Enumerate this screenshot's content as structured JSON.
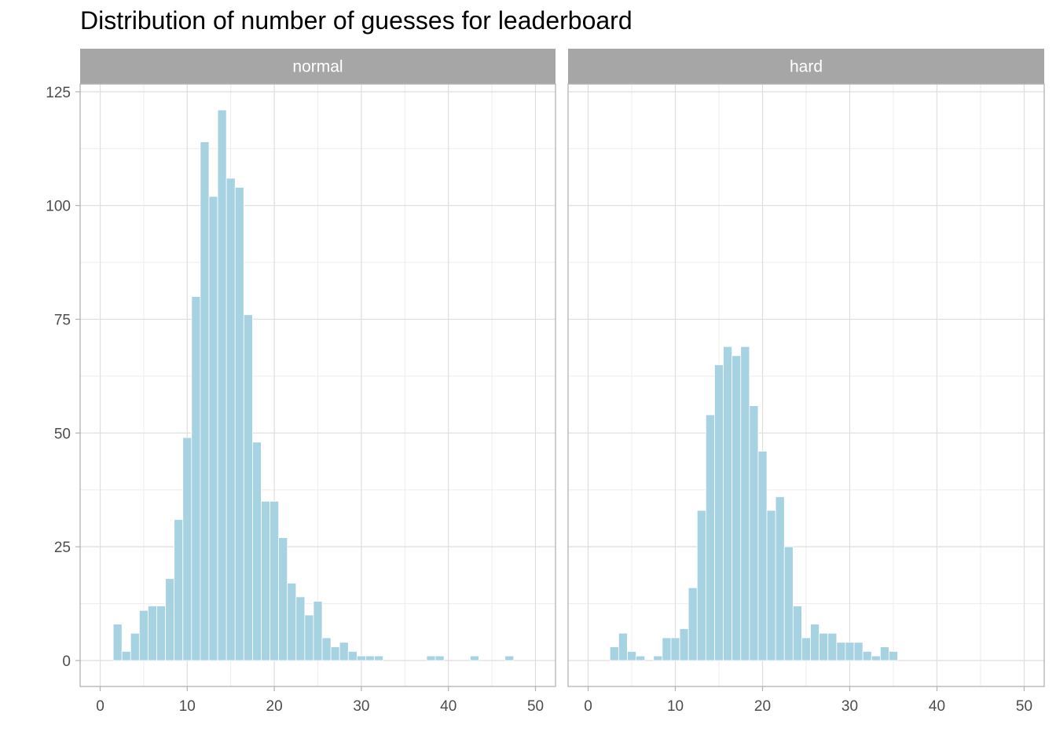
{
  "chart_data": {
    "type": "bar",
    "title": "Distribution of number of guesses for leaderboard",
    "xlabel": "",
    "ylabel": "",
    "xlim": [
      -2.3,
      52.3
    ],
    "ylim": [
      -5.7,
      126.7
    ],
    "x_ticks": [
      0,
      10,
      20,
      30,
      40,
      50
    ],
    "y_ticks": [
      0,
      25,
      50,
      75,
      100,
      125
    ],
    "grid": true,
    "bar_color": "#A6D2E2",
    "strip_color": "#A6A6A6",
    "panels": [
      {
        "name": "normal",
        "x": [
          2,
          3,
          4,
          5,
          6,
          7,
          8,
          9,
          10,
          11,
          12,
          13,
          14,
          15,
          16,
          17,
          18,
          19,
          20,
          21,
          22,
          23,
          24,
          25,
          26,
          27,
          28,
          29,
          30,
          31,
          32,
          38,
          39,
          43,
          47
        ],
        "values": [
          8,
          2,
          6,
          11,
          12,
          12,
          18,
          31,
          49,
          80,
          114,
          102,
          121,
          106,
          104,
          76,
          48,
          35,
          35,
          27,
          17,
          14,
          10,
          13,
          5,
          3,
          4,
          2,
          1,
          1,
          1,
          1,
          1,
          1,
          1
        ]
      },
      {
        "name": "hard",
        "x": [
          3,
          4,
          5,
          6,
          8,
          9,
          10,
          11,
          12,
          13,
          14,
          15,
          16,
          17,
          18,
          19,
          20,
          21,
          22,
          23,
          24,
          25,
          26,
          27,
          28,
          29,
          30,
          31,
          32,
          33,
          34,
          35
        ],
        "values": [
          3,
          6,
          2,
          1,
          1,
          5,
          5,
          7,
          16,
          33,
          54,
          65,
          69,
          67,
          69,
          56,
          46,
          33,
          36,
          25,
          12,
          5,
          8,
          6,
          6,
          4,
          4,
          4,
          2,
          1,
          3,
          2
        ]
      }
    ]
  }
}
